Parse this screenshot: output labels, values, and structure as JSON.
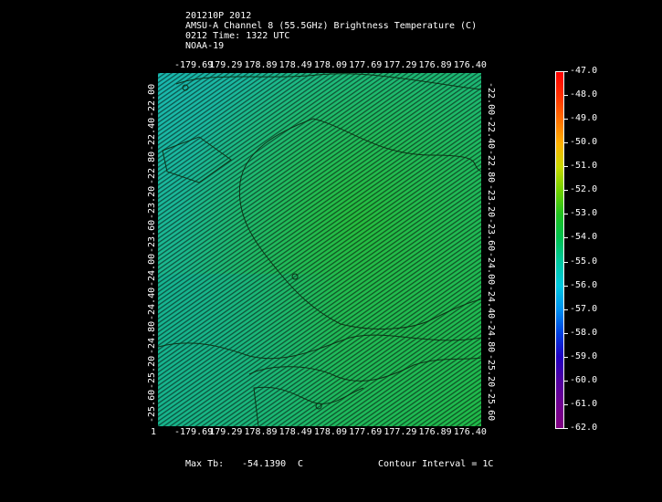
{
  "header": {
    "line1": "201210P 2012",
    "line2": "AMSU-A Channel 8 (55.5GHz) Brightness Temperature (C)",
    "line3": "0212 Time: 1322 UTC",
    "line4": "NOAA-19"
  },
  "map": {
    "lon_ticks": [
      "-179.69",
      "179.29",
      "178.89",
      "178.49",
      "178.09",
      "177.69",
      "177.29",
      "176.89",
      "176.40"
    ],
    "lat_ticks": [
      "-22.00",
      "-22.40",
      "-22.80",
      "-23.20",
      "-23.60",
      "-24.00",
      "-24.40",
      "-24.80",
      "-25.20",
      "-25.60"
    ],
    "corner_label": "1"
  },
  "colorbar": {
    "labels": [
      "-47.0",
      "-48.0",
      "-49.0",
      "-50.0",
      "-51.0",
      "-52.0",
      "-53.0",
      "-54.0",
      "-55.0",
      "-56.0",
      "-57.0",
      "-58.0",
      "-59.0",
      "-60.0",
      "-61.0",
      "-62.0"
    ],
    "colors": [
      "#ff0000",
      "#ff3000",
      "#ff7000",
      "#ffb000",
      "#c8d800",
      "#70d000",
      "#20c020",
      "#00c050",
      "#00c8a0",
      "#00c8e0",
      "#0090f0",
      "#0040e0",
      "#2000c0",
      "#5000a0",
      "#700090",
      "#800080"
    ]
  },
  "footer": {
    "max_label": "Max Tb:",
    "max_value": "-54.1390",
    "max_unit": "C",
    "contour": "Contour Interval = 1C"
  },
  "field": {
    "nw_color": "#17b89c",
    "center_color": "#20ba40",
    "sw_color": "#16b582",
    "se_color": "#1fb848"
  }
}
